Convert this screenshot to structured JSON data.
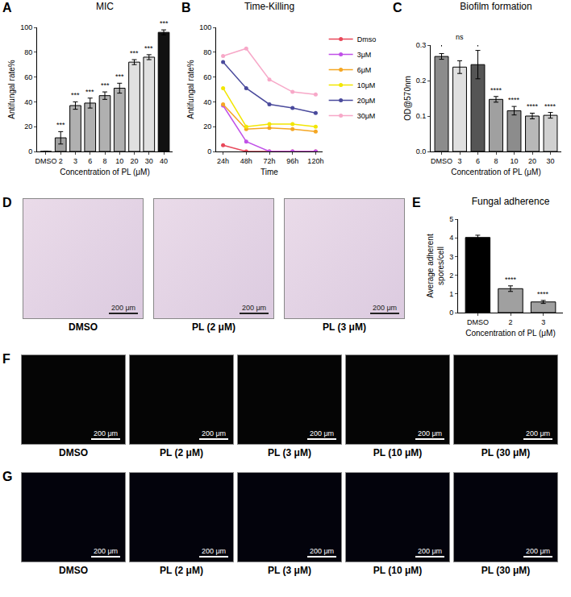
{
  "chart_data": [
    {
      "panel": "A",
      "type": "bar",
      "title": "MIC",
      "categories": [
        "DMSO",
        "2",
        "3",
        "6",
        "8",
        "10",
        "20",
        "30",
        "40"
      ],
      "values": [
        0,
        11,
        37,
        39,
        45,
        51,
        72,
        76,
        96
      ],
      "errors": [
        0,
        5,
        3,
        4,
        3,
        4,
        2,
        2,
        2
      ],
      "colors": [
        "#a0a0a0",
        "#a0a0a0",
        "#b0b0b0",
        "#b0b0b0",
        "#b0b0b0",
        "#b0b0b0",
        "#e0e0e0",
        "#e0e0e0",
        "#111111"
      ],
      "significance": [
        null,
        "***",
        "***",
        "***",
        "***",
        "***",
        "***",
        "***",
        "***"
      ],
      "xlabel": "Concentration of PL (μM)",
      "ylabel": "Antifungal rate%",
      "ylim": [
        0,
        100
      ],
      "yticks": [
        0,
        20,
        40,
        60,
        80,
        100
      ],
      "grid": false
    },
    {
      "panel": "B",
      "type": "line",
      "title": "Time-Killing",
      "categories": [
        "24h",
        "48h",
        "72h",
        "96h",
        "120h"
      ],
      "series": [
        {
          "name": "Dmso",
          "color": "#e8485a",
          "values": [
            5,
            0,
            0,
            0,
            0
          ]
        },
        {
          "name": "3μM",
          "color": "#c050e8",
          "values": [
            37,
            8,
            0,
            0,
            0
          ]
        },
        {
          "name": "6μM",
          "color": "#f5a623",
          "values": [
            38,
            18,
            19,
            18,
            16
          ]
        },
        {
          "name": "10μM",
          "color": "#f2e600",
          "values": [
            51,
            20,
            22,
            22,
            20
          ]
        },
        {
          "name": "20μM",
          "color": "#4a4a9c",
          "values": [
            72,
            51,
            38,
            35,
            31
          ]
        },
        {
          "name": "30μM",
          "color": "#f7a8c8",
          "values": [
            77,
            83,
            58,
            48,
            46
          ]
        }
      ],
      "xlabel": "Time",
      "ylabel": "Antifungal rate%",
      "ylim": [
        0,
        100
      ],
      "yticks": [
        0,
        20,
        40,
        60,
        80,
        100
      ],
      "legend": "right",
      "marker": "circle",
      "line_style": "solid",
      "grid": false
    },
    {
      "panel": "C",
      "type": "bar",
      "title": "Biofilm formation",
      "categories": [
        "DMSO",
        "3",
        "6",
        "8",
        "10",
        "20",
        "30"
      ],
      "values": [
        0.268,
        0.238,
        0.245,
        0.147,
        0.115,
        0.1,
        0.102
      ],
      "errors": [
        0.008,
        0.018,
        0.04,
        0.008,
        0.012,
        0.008,
        0.008
      ],
      "colors": [
        "#8c8c8c",
        "#e0e0e0",
        "#555555",
        "#a0a0a0",
        "#8c8c8c",
        "#b8b8b8",
        "#d0d0d0"
      ],
      "significance": [
        null,
        null,
        null,
        "****",
        "****",
        "****",
        "****"
      ],
      "brackets": [
        {
          "from": "DMSO",
          "to": "6",
          "label": "ns"
        }
      ],
      "xlabel": "Concentration of PL (μM)",
      "ylabel": "OD@570nm",
      "ylim": [
        0,
        0.3
      ],
      "yticks": [
        {
          "value": 0,
          "label": "0.0"
        },
        0.1,
        0.2,
        0.3
      ],
      "grid": false
    },
    {
      "panel": "E",
      "type": "bar",
      "title": "Fungal adherence",
      "categories": [
        "DMSO",
        "2",
        "3"
      ],
      "values": [
        4.02,
        1.28,
        0.57
      ],
      "errors": [
        0.12,
        0.15,
        0.08
      ],
      "colors": [
        "#000000",
        "#a0a0a0",
        "#a0a0a0"
      ],
      "significance": [
        null,
        "****",
        "****"
      ],
      "xlabel": "Concentration of PL (μM)",
      "ylabel": "Average adherent spores/cell",
      "ylim": [
        0,
        5
      ],
      "yticks": [
        0,
        1,
        2,
        3,
        4,
        5
      ],
      "grid": false
    }
  ],
  "images": [
    {
      "panel": "D",
      "captions": [
        "DMSO",
        "PL (2 μM)",
        "PL (3 μM)"
      ],
      "scale_bar": "200 μm"
    },
    {
      "panel": "F",
      "captions": [
        "DMSO",
        "PL (2 μM)",
        "PL (3 μM)",
        "PL (10 μM)",
        "PL (30 μM)"
      ],
      "scale_bar": "200 μm"
    },
    {
      "panel": "G",
      "captions": [
        "DMSO",
        "PL (2 μM)",
        "PL (3 μM)",
        "PL (10 μM)",
        "PL (30 μM)"
      ],
      "scale_bar": "200 μm"
    }
  ]
}
